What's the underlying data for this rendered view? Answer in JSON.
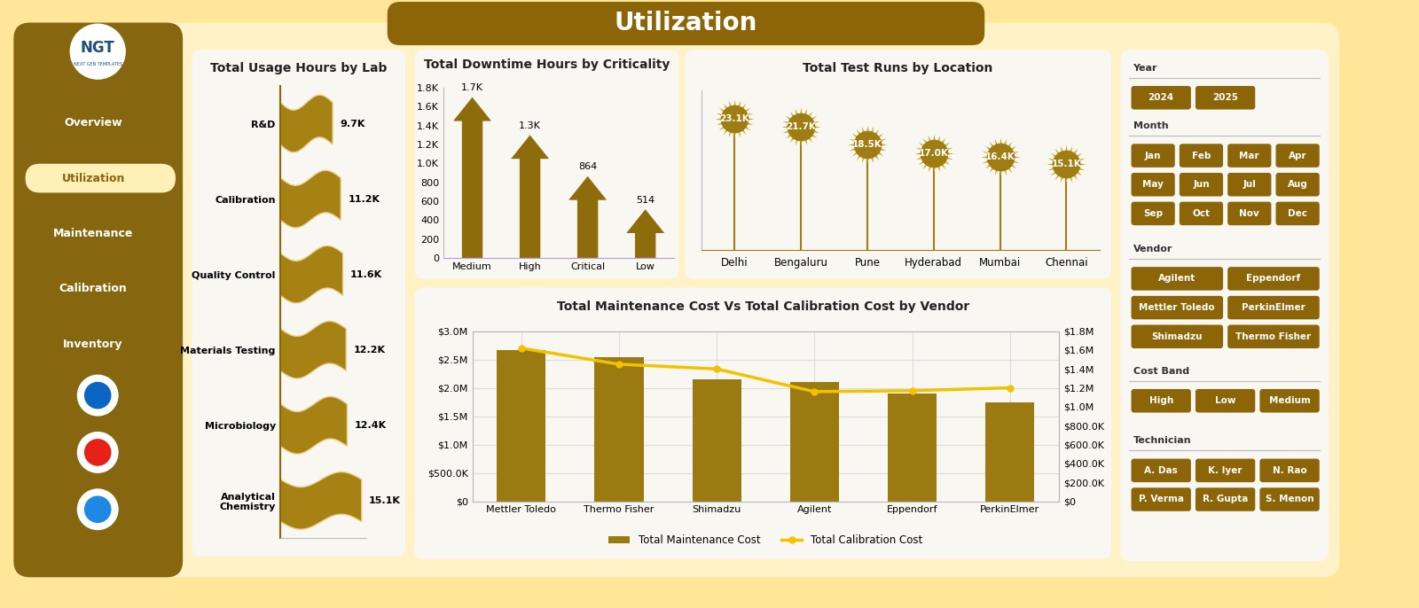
{
  "title": "Utilization",
  "logo": "NGT",
  "logo_subtitle": "NEXT GEN TEMPLATES",
  "nav": [
    "Overview",
    "Utilization",
    "Maintenance",
    "Calibration",
    "Inventory"
  ],
  "active_nav": "Utilization",
  "chart_data": [
    {
      "type": "bar",
      "orientation": "horizontal",
      "title": "Total Usage Hours by Lab",
      "categories": [
        "R&D",
        "Calibration",
        "Quality Control",
        "Materials Testing",
        "Microbiology",
        "Analytical Chemistry"
      ],
      "values": [
        9700,
        11200,
        11600,
        12200,
        12400,
        15100
      ],
      "value_labels": [
        "9.7K",
        "11.2K",
        "11.6K",
        "12.2K",
        "12.4K",
        "15.1K"
      ],
      "data_labels": true,
      "xlim": [
        0,
        16000
      ],
      "tick_labels": "y",
      "color": "#A68214"
    },
    {
      "type": "arrow",
      "title": "Total Downtime Hours by Criticality",
      "categories": [
        "Medium",
        "High",
        "Critical",
        "Low"
      ],
      "values": [
        1700,
        1300,
        864,
        514
      ],
      "value_labels": [
        "1.7K",
        "1.3K",
        "864",
        "514"
      ],
      "data_labels": true,
      "ylim": [
        0,
        1800
      ],
      "yticks": [
        0,
        200,
        400,
        600,
        800,
        {
          "value": 1000,
          "label": "1.0K"
        },
        {
          "value": 1200,
          "label": "1.2K"
        },
        {
          "value": 1400,
          "label": "1.4K"
        },
        {
          "value": 1600,
          "label": "1.6K"
        },
        {
          "value": 1800,
          "label": "1.8K"
        }
      ],
      "color": "#8E6C0C"
    },
    {
      "type": "lollipop",
      "title": "Total Test Runs by Location",
      "categories": [
        "Delhi",
        "Bengaluru",
        "Pune",
        "Hyderabad",
        "Mumbai",
        "Chennai"
      ],
      "values": [
        23100,
        21700,
        18500,
        17000,
        16400,
        15100
      ],
      "value_labels": [
        "23.1K",
        "21.7K",
        "18.5K",
        "17.0K",
        "16.4K",
        "15.1K"
      ],
      "data_labels": true,
      "ylim": [
        0,
        28000
      ],
      "tick_labels": "x",
      "marker": "starburst",
      "color": "#A07D12"
    },
    {
      "type": "bar",
      "title": "Total Maintenance Cost Vs Total Calibration Cost by Vendor",
      "categories": [
        "Mettler Toledo",
        "Thermo Fisher",
        "Shimadzu",
        "Agilent",
        "Eppendorf",
        "PerkinElmer"
      ],
      "series": [
        {
          "name": "Total Maintenance Cost",
          "type": "bar",
          "color": "#9C7A12",
          "values": [
            2660000,
            2540000,
            2150000,
            2100000,
            1900000,
            1750000
          ]
        },
        {
          "name": "Total Calibration Cost",
          "type": "line",
          "axis": "y2",
          "color": "#F2C200",
          "marker": "circle",
          "values": [
            1620000,
            1450000,
            1400000,
            1160000,
            1170000,
            1200000
          ]
        }
      ],
      "ylim": [
        0,
        3000000
      ],
      "yticks": [
        {
          "value": 0,
          "label": "$0"
        },
        {
          "value": 500000,
          "label": "$500.0K"
        },
        {
          "value": 1000000,
          "label": "$1.0M"
        },
        {
          "value": 1500000,
          "label": "$1.5M"
        },
        {
          "value": 2000000,
          "label": "$2.0M"
        },
        {
          "value": 2500000,
          "label": "$2.5M"
        },
        {
          "value": 3000000,
          "label": "$3.0M"
        }
      ],
      "y2lim": [
        0,
        1800000
      ],
      "y2ticks": [
        {
          "value": 0,
          "label": "$0"
        },
        {
          "value": 200000,
          "label": "$200.0K"
        },
        {
          "value": 400000,
          "label": "$400.0K"
        },
        {
          "value": 600000,
          "label": "$600.0K"
        },
        {
          "value": 800000,
          "label": "$800.0K"
        },
        {
          "value": 1000000,
          "label": "$1.0M"
        },
        {
          "value": 1200000,
          "label": "$1.2M"
        },
        {
          "value": 1400000,
          "label": "$1.4M"
        },
        {
          "value": 1600000,
          "label": "$1.6M"
        },
        {
          "value": 1800000,
          "label": "$1.8M"
        }
      ],
      "grid": true,
      "legend": "lower center"
    }
  ],
  "filters": [
    {
      "title": "Year",
      "options": [
        "2024",
        "2025"
      ]
    },
    {
      "title": "Month",
      "options": [
        "Jan",
        "Feb",
        "Mar",
        "Apr",
        "May",
        "Jun",
        "Jul",
        "Aug",
        "Sep",
        "Oct",
        "Nov",
        "Dec"
      ]
    },
    {
      "title": "Vendor",
      "options": [
        "Agilent",
        "Eppendorf",
        "Mettler Toledo",
        "PerkinElmer",
        "Shimadzu",
        "Thermo Fisher"
      ]
    },
    {
      "title": "Cost Band",
      "options": [
        "High",
        "Low",
        "Medium"
      ]
    },
    {
      "title": "Technician",
      "options": [
        "A. Das",
        "K. Iyer",
        "N. Rao",
        "P. Verma",
        "R. Gupta",
        "S. Menon"
      ]
    }
  ]
}
